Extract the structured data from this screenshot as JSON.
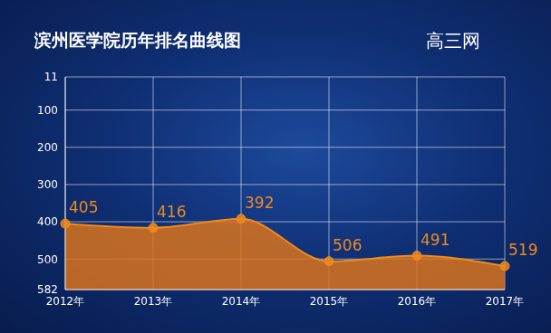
{
  "chart_data": {
    "type": "area",
    "title": "滨州医学院历年排名曲线图",
    "source": "高三网",
    "categories": [
      "2012年",
      "2013年",
      "2014年",
      "2015年",
      "2016年",
      "2017年"
    ],
    "values": [
      405,
      416,
      392,
      506,
      491,
      519
    ],
    "color": "#f08a1e",
    "ylim": [
      582,
      11
    ],
    "yticks": [
      11,
      100,
      200,
      300,
      400,
      500,
      582
    ],
    "grid": true,
    "data_labels": true,
    "marker": "circle"
  }
}
